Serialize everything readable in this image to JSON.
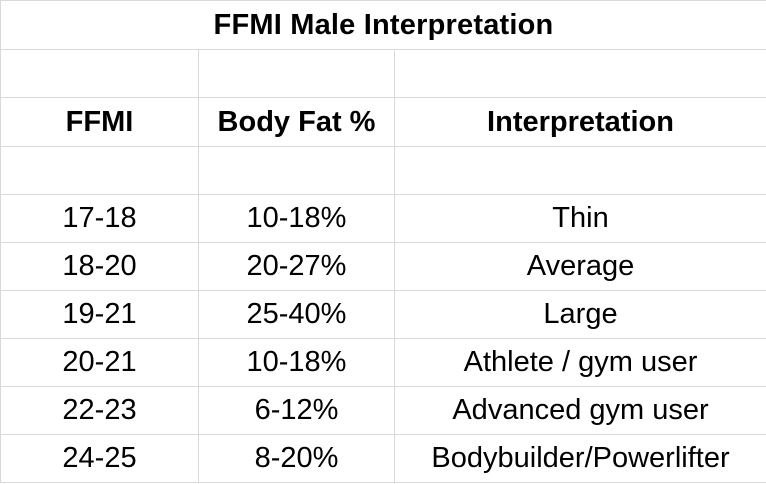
{
  "table": {
    "title": "FFMI Male Interpretation",
    "columns": [
      "FFMI",
      "Body Fat %",
      "Interpretation"
    ],
    "rows": [
      {
        "ffmi": "17-18",
        "body_fat": "10-18%",
        "interpretation": "Thin"
      },
      {
        "ffmi": "18-20",
        "body_fat": "20-27%",
        "interpretation": "Average"
      },
      {
        "ffmi": "19-21",
        "body_fat": "25-40%",
        "interpretation": "Large"
      },
      {
        "ffmi": "20-21",
        "body_fat": "10-18%",
        "interpretation": "Athlete / gym user"
      },
      {
        "ffmi": "22-23",
        "body_fat": "6-12%",
        "interpretation": "Advanced gym user"
      },
      {
        "ffmi": "24-25",
        "body_fat": "8-20%",
        "interpretation": "Bodybuilder/Powerlifter"
      }
    ]
  },
  "colors": {
    "gridline": "#d9d9d9",
    "text": "#000000",
    "background": "#ffffff"
  }
}
